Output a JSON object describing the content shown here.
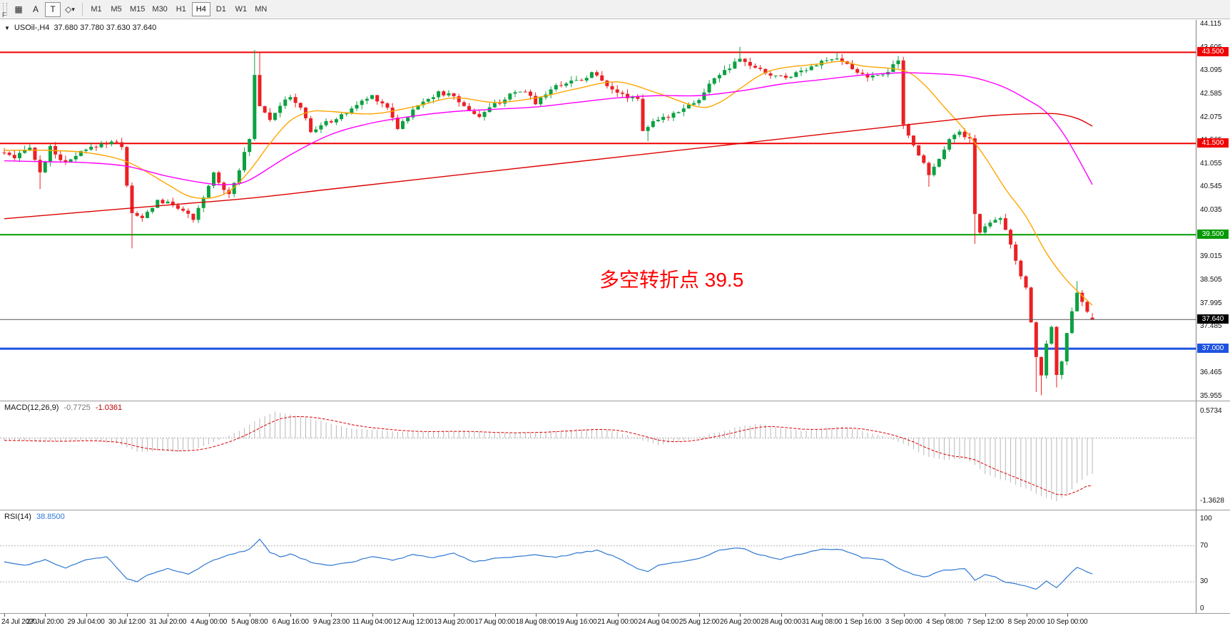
{
  "toolbar": {
    "f_label": "F",
    "letter_a": "A",
    "letter_t": "T",
    "timeframes": [
      "M1",
      "M5",
      "M15",
      "M30",
      "H1",
      "H4",
      "D1",
      "W1",
      "MN"
    ],
    "active_timeframe": "H4"
  },
  "chart": {
    "title": "USOil-,H4",
    "ohlc": "37.680 37.780 37.630 37.640",
    "annotation": {
      "text": "多空转折点 39.5",
      "color": "#FF0000"
    },
    "y_axis": {
      "labels": [
        "44.115",
        "43.605",
        "43.095",
        "42.585",
        "42.075",
        "41.565",
        "41.055",
        "40.545",
        "40.035",
        "39.525",
        "39.015",
        "38.505",
        "37.995",
        "37.485",
        "36.975",
        "36.465",
        "35.955"
      ]
    },
    "x_axis": {
      "labels": [
        "24 Jul 2020",
        "27 Jul 20:00",
        "29 Jul 04:00",
        "30 Jul 12:00",
        "31 Jul 20:00",
        "4 Aug 00:00",
        "5 Aug 08:00",
        "6 Aug 16:00",
        "9 Aug 23:00",
        "11 Aug 04:00",
        "12 Aug 12:00",
        "13 Aug 20:00",
        "17 Aug 00:00",
        "18 Aug 08:00",
        "19 Aug 16:00",
        "21 Aug 00:00",
        "24 Aug 04:00",
        "25 Aug 12:00",
        "26 Aug 20:00",
        "28 Aug 00:00",
        "31 Aug 08:00",
        "1 Sep 16:00",
        "3 Sep 00:00",
        "4 Sep 08:00",
        "7 Sep 12:00",
        "8 Sep 20:00",
        "10 Sep 00:00"
      ]
    },
    "levels": [
      {
        "price": 43.5,
        "label": "43.500",
        "color": "#F00000",
        "width": 2
      },
      {
        "price": 41.5,
        "label": "41.500",
        "color": "#F00000",
        "width": 2
      },
      {
        "price": 39.5,
        "label": "39.500",
        "color": "#009900",
        "width": 2
      },
      {
        "price": 37.0,
        "label": "37.000",
        "color": "#1E52E0",
        "width": 3
      },
      {
        "price": 37.64,
        "label": "37.640",
        "color": "#000000",
        "width": 1,
        "style": "bid"
      }
    ]
  },
  "indicators": {
    "macd": {
      "name": "MACD(12,26,9)",
      "main": "-0.7725",
      "signal": "-1.0361"
    },
    "rsi": {
      "name": "RSI(14)",
      "value": "38.8500"
    }
  },
  "chart_data": {
    "type": "candlestick",
    "symbol": "USOil-",
    "timeframe": "H4",
    "bars": 214,
    "y_range": [
      35.955,
      44.115
    ],
    "last_candle": {
      "open": 37.68,
      "high": 37.78,
      "low": 37.63,
      "close": 37.64
    },
    "key_levels": [
      43.5,
      41.5,
      39.5,
      37.0
    ],
    "colors": {
      "up": "#0CA141",
      "down": "#EB2024",
      "macd_hist": "#B8B8B8",
      "macd_signal": "#DD0000",
      "rsi": "#2E78D2"
    },
    "price_anchors": [
      [
        0,
        41.3
      ],
      [
        2,
        41.15
      ],
      [
        5,
        41.45
      ],
      [
        7,
        40.85
      ],
      [
        9,
        41.4
      ],
      [
        12,
        41.05
      ],
      [
        15,
        41.3
      ],
      [
        18,
        41.45
      ],
      [
        21,
        41.55
      ],
      [
        23,
        41.45
      ],
      [
        24,
        40.6
      ],
      [
        25,
        39.95
      ],
      [
        27,
        39.85
      ],
      [
        30,
        40.25
      ],
      [
        33,
        40.15
      ],
      [
        35,
        40.05
      ],
      [
        37,
        39.8
      ],
      [
        39,
        40.3
      ],
      [
        41,
        40.85
      ],
      [
        43,
        40.5
      ],
      [
        44,
        40.4
      ],
      [
        46,
        40.95
      ],
      [
        48,
        41.6
      ],
      [
        49,
        43.0
      ],
      [
        50,
        42.35
      ],
      [
        52,
        42.05
      ],
      [
        54,
        42.35
      ],
      [
        56,
        42.5
      ],
      [
        58,
        42.3
      ],
      [
        60,
        41.75
      ],
      [
        62,
        41.9
      ],
      [
        64,
        42.0
      ],
      [
        66,
        42.1
      ],
      [
        69,
        42.35
      ],
      [
        72,
        42.55
      ],
      [
        75,
        42.3
      ],
      [
        77,
        41.85
      ],
      [
        79,
        42.1
      ],
      [
        82,
        42.45
      ],
      [
        85,
        42.6
      ],
      [
        88,
        42.55
      ],
      [
        90,
        42.3
      ],
      [
        93,
        42.1
      ],
      [
        96,
        42.35
      ],
      [
        99,
        42.55
      ],
      [
        102,
        42.65
      ],
      [
        104,
        42.4
      ],
      [
        107,
        42.7
      ],
      [
        110,
        42.85
      ],
      [
        113,
        42.9
      ],
      [
        115,
        43.05
      ],
      [
        118,
        42.8
      ],
      [
        121,
        42.55
      ],
      [
        124,
        42.5
      ],
      [
        125,
        41.8
      ],
      [
        127,
        41.95
      ],
      [
        130,
        42.1
      ],
      [
        133,
        42.3
      ],
      [
        136,
        42.45
      ],
      [
        139,
        42.95
      ],
      [
        142,
        43.15
      ],
      [
        144,
        43.35
      ],
      [
        147,
        43.15
      ],
      [
        150,
        43.0
      ],
      [
        153,
        42.95
      ],
      [
        156,
        43.1
      ],
      [
        159,
        43.25
      ],
      [
        162,
        43.35
      ],
      [
        164,
        43.3
      ],
      [
        167,
        43.05
      ],
      [
        170,
        42.95
      ],
      [
        173,
        43.1
      ],
      [
        175,
        43.3
      ],
      [
        176,
        41.9
      ],
      [
        178,
        41.45
      ],
      [
        180,
        41.1
      ],
      [
        181,
        40.8
      ],
      [
        183,
        41.2
      ],
      [
        185,
        41.6
      ],
      [
        187,
        41.75
      ],
      [
        189,
        41.6
      ],
      [
        190,
        39.95
      ],
      [
        191,
        39.55
      ],
      [
        193,
        39.8
      ],
      [
        195,
        39.9
      ],
      [
        197,
        39.3
      ],
      [
        199,
        38.55
      ],
      [
        200,
        38.3
      ],
      [
        201,
        37.6
      ],
      [
        202,
        36.8
      ],
      [
        203,
        36.45
      ],
      [
        204,
        37.1
      ],
      [
        205,
        37.45
      ],
      [
        206,
        36.45
      ],
      [
        207,
        36.75
      ],
      [
        208,
        37.3
      ],
      [
        209,
        37.8
      ],
      [
        210,
        38.2
      ],
      [
        211,
        38.05
      ],
      [
        212,
        37.8
      ],
      [
        213,
        37.64
      ]
    ],
    "spikes": {
      "7": {
        "l": 40.5
      },
      "25": {
        "l": 39.2
      },
      "44": {
        "l": 40.3
      },
      "49": {
        "h": 43.55
      },
      "50": {
        "h": 43.5
      },
      "126": {
        "l": 41.55
      },
      "144": {
        "h": 43.62
      },
      "163": {
        "h": 43.5
      },
      "175": {
        "h": 43.42
      },
      "181": {
        "l": 40.55
      },
      "190": {
        "l": 39.3
      },
      "202": {
        "l": 36.05
      },
      "203": {
        "l": 35.98
      },
      "206": {
        "l": 36.15
      },
      "210": {
        "h": 38.48
      },
      "213": {
        "o": 37.68,
        "h": 37.78,
        "l": 37.63,
        "c": 37.64
      }
    },
    "moving_averages": [
      {
        "name": "fast-orange",
        "color": "#FFA500",
        "points": [
          [
            0,
            41.35
          ],
          [
            8,
            41.35
          ],
          [
            16,
            41.3
          ],
          [
            24,
            41.1
          ],
          [
            32,
            40.6
          ],
          [
            36,
            40.35
          ],
          [
            40,
            40.3
          ],
          [
            44,
            40.45
          ],
          [
            48,
            40.9
          ],
          [
            52,
            41.5
          ],
          [
            56,
            42.0
          ],
          [
            60,
            42.2
          ],
          [
            64,
            42.2
          ],
          [
            72,
            42.15
          ],
          [
            80,
            42.3
          ],
          [
            88,
            42.5
          ],
          [
            96,
            42.4
          ],
          [
            104,
            42.5
          ],
          [
            112,
            42.7
          ],
          [
            120,
            42.85
          ],
          [
            128,
            42.6
          ],
          [
            136,
            42.3
          ],
          [
            140,
            42.4
          ],
          [
            144,
            42.7
          ],
          [
            148,
            43.0
          ],
          [
            152,
            43.15
          ],
          [
            160,
            43.25
          ],
          [
            164,
            43.3
          ],
          [
            168,
            43.2
          ],
          [
            176,
            43.1
          ],
          [
            180,
            42.8
          ],
          [
            184,
            42.3
          ],
          [
            188,
            41.8
          ],
          [
            192,
            41.2
          ],
          [
            196,
            40.5
          ],
          [
            200,
            39.9
          ],
          [
            204,
            39.1
          ],
          [
            208,
            38.5
          ],
          [
            213,
            37.95
          ]
        ]
      },
      {
        "name": "medium-magenta",
        "color": "#FF00FF",
        "points": [
          [
            0,
            41.12
          ],
          [
            8,
            41.1
          ],
          [
            16,
            41.08
          ],
          [
            24,
            41.0
          ],
          [
            32,
            40.78
          ],
          [
            40,
            40.62
          ],
          [
            44,
            40.6
          ],
          [
            48,
            40.7
          ],
          [
            56,
            41.25
          ],
          [
            64,
            41.7
          ],
          [
            72,
            41.95
          ],
          [
            80,
            42.1
          ],
          [
            88,
            42.2
          ],
          [
            96,
            42.25
          ],
          [
            104,
            42.3
          ],
          [
            112,
            42.4
          ],
          [
            120,
            42.5
          ],
          [
            128,
            42.55
          ],
          [
            136,
            42.55
          ],
          [
            144,
            42.65
          ],
          [
            152,
            42.8
          ],
          [
            160,
            42.9
          ],
          [
            168,
            43.0
          ],
          [
            176,
            43.05
          ],
          [
            184,
            43.02
          ],
          [
            188,
            42.98
          ],
          [
            192,
            42.88
          ],
          [
            196,
            42.72
          ],
          [
            200,
            42.48
          ],
          [
            204,
            42.18
          ],
          [
            208,
            41.6
          ],
          [
            213,
            40.6
          ]
        ]
      },
      {
        "name": "slow-red",
        "color": "#DD0000",
        "points": [
          [
            0,
            39.85
          ],
          [
            16,
            40.0
          ],
          [
            32,
            40.15
          ],
          [
            48,
            40.3
          ],
          [
            64,
            40.5
          ],
          [
            80,
            40.7
          ],
          [
            96,
            40.9
          ],
          [
            112,
            41.1
          ],
          [
            128,
            41.3
          ],
          [
            144,
            41.5
          ],
          [
            160,
            41.7
          ],
          [
            176,
            41.9
          ],
          [
            184,
            42.0
          ],
          [
            192,
            42.1
          ],
          [
            200,
            42.15
          ],
          [
            206,
            42.15
          ],
          [
            210,
            42.05
          ],
          [
            213,
            41.88
          ]
        ]
      }
    ],
    "macd": {
      "main": -0.7725,
      "signal": -1.0361,
      "window_max": 0.5734,
      "window_min": -1.3628,
      "scale_labels": [
        "0.5734",
        "-1.3628"
      ],
      "main_points": [
        [
          0,
          -0.05
        ],
        [
          8,
          -0.08
        ],
        [
          16,
          -0.05
        ],
        [
          22,
          -0.12
        ],
        [
          26,
          -0.3
        ],
        [
          30,
          -0.28
        ],
        [
          34,
          -0.3
        ],
        [
          38,
          -0.22
        ],
        [
          42,
          -0.05
        ],
        [
          46,
          0.15
        ],
        [
          50,
          0.42
        ],
        [
          53,
          0.57
        ],
        [
          56,
          0.5
        ],
        [
          60,
          0.42
        ],
        [
          64,
          0.3
        ],
        [
          68,
          0.2
        ],
        [
          72,
          0.17
        ],
        [
          76,
          0.14
        ],
        [
          80,
          0.12
        ],
        [
          88,
          0.15
        ],
        [
          96,
          0.1
        ],
        [
          104,
          0.12
        ],
        [
          112,
          0.18
        ],
        [
          116,
          0.2
        ],
        [
          120,
          0.13
        ],
        [
          124,
          -0.02
        ],
        [
          128,
          -0.15
        ],
        [
          132,
          -0.08
        ],
        [
          136,
          0.02
        ],
        [
          140,
          0.12
        ],
        [
          144,
          0.25
        ],
        [
          148,
          0.3
        ],
        [
          152,
          0.2
        ],
        [
          156,
          0.15
        ],
        [
          160,
          0.2
        ],
        [
          164,
          0.24
        ],
        [
          168,
          0.15
        ],
        [
          172,
          0.04
        ],
        [
          176,
          -0.12
        ],
        [
          180,
          -0.38
        ],
        [
          184,
          -0.48
        ],
        [
          188,
          -0.46
        ],
        [
          190,
          -0.58
        ],
        [
          192,
          -0.78
        ],
        [
          196,
          -0.92
        ],
        [
          200,
          -1.1
        ],
        [
          204,
          -1.3
        ],
        [
          206,
          -1.36
        ],
        [
          208,
          -1.22
        ],
        [
          210,
          -0.98
        ],
        [
          212,
          -0.82
        ],
        [
          213,
          -0.7725
        ]
      ]
    },
    "rsi": {
      "value": 38.85,
      "levels": [
        70,
        30
      ],
      "scale_labels": [
        "100",
        "70",
        "30",
        "0"
      ],
      "points": [
        [
          0,
          52
        ],
        [
          4,
          48
        ],
        [
          8,
          55
        ],
        [
          12,
          45
        ],
        [
          16,
          55
        ],
        [
          20,
          58
        ],
        [
          24,
          34
        ],
        [
          26,
          30
        ],
        [
          28,
          38
        ],
        [
          32,
          45
        ],
        [
          36,
          38
        ],
        [
          40,
          52
        ],
        [
          44,
          60
        ],
        [
          48,
          66
        ],
        [
          50,
          78
        ],
        [
          52,
          63
        ],
        [
          54,
          58
        ],
        [
          56,
          61
        ],
        [
          60,
          52
        ],
        [
          64,
          48
        ],
        [
          68,
          52
        ],
        [
          72,
          58
        ],
        [
          76,
          54
        ],
        [
          80,
          60
        ],
        [
          84,
          57
        ],
        [
          88,
          62
        ],
        [
          92,
          52
        ],
        [
          96,
          56
        ],
        [
          100,
          58
        ],
        [
          104,
          60
        ],
        [
          108,
          57
        ],
        [
          112,
          62
        ],
        [
          116,
          65
        ],
        [
          120,
          57
        ],
        [
          124,
          45
        ],
        [
          126,
          42
        ],
        [
          128,
          48
        ],
        [
          132,
          52
        ],
        [
          136,
          56
        ],
        [
          140,
          65
        ],
        [
          144,
          68
        ],
        [
          148,
          60
        ],
        [
          152,
          55
        ],
        [
          156,
          61
        ],
        [
          160,
          66
        ],
        [
          164,
          66
        ],
        [
          168,
          57
        ],
        [
          172,
          55
        ],
        [
          176,
          42
        ],
        [
          180,
          35
        ],
        [
          184,
          43
        ],
        [
          188,
          45
        ],
        [
          190,
          32
        ],
        [
          192,
          38
        ],
        [
          194,
          35
        ],
        [
          196,
          30
        ],
        [
          198,
          28
        ],
        [
          200,
          25
        ],
        [
          202,
          22
        ],
        [
          204,
          31
        ],
        [
          206,
          24
        ],
        [
          208,
          35
        ],
        [
          210,
          46
        ],
        [
          212,
          41
        ],
        [
          213,
          38.85
        ]
      ]
    }
  }
}
